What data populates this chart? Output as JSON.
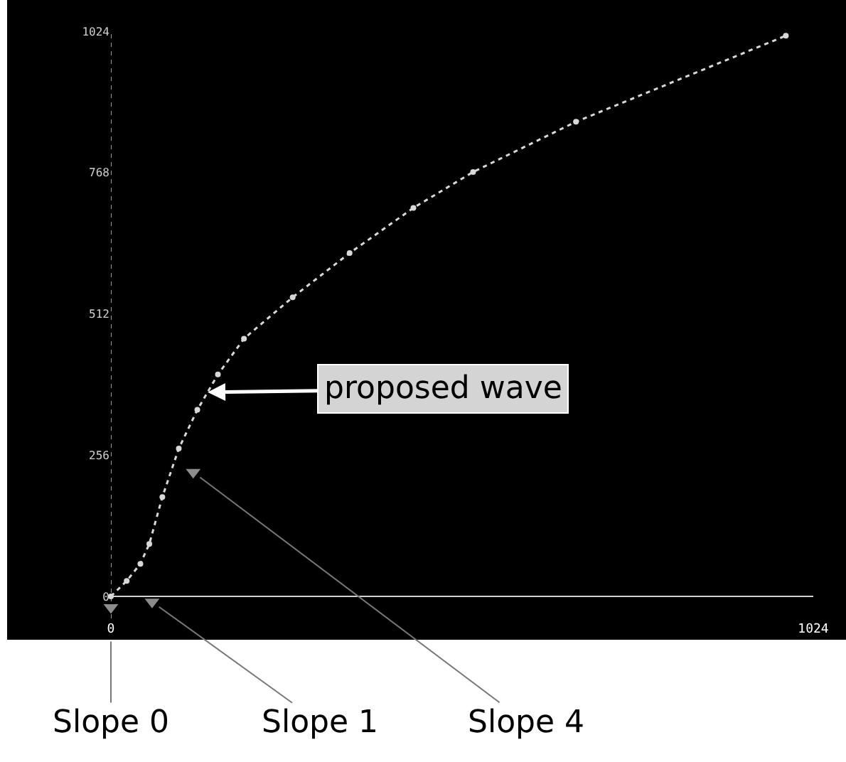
{
  "chart_data": {
    "type": "line",
    "xlim": [
      0,
      1024
    ],
    "ylim": [
      -40,
      1024
    ],
    "xticks": [
      0,
      1024
    ],
    "yticks": [
      0,
      256,
      512,
      768,
      1024
    ],
    "grid": false,
    "series": [
      {
        "color": "#d8d8d8",
        "line_style": "dotted",
        "marker": "circle",
        "x": [
          0,
          23,
          43,
          56,
          75,
          99,
          126,
          156,
          194,
          265,
          348,
          441,
          528,
          678,
          984
        ],
        "values": [
          0,
          28,
          59,
          95,
          180,
          268,
          338,
          402,
          467,
          542,
          622,
          704,
          769,
          860,
          1016
        ]
      },
      {
        "type": "scatter",
        "color": "#8c8c8c",
        "marker": "triangle",
        "x": [
          0,
          60,
          120
        ],
        "values": [
          -20,
          -10,
          225
        ]
      }
    ],
    "ref_lines": [
      {
        "axis": "x",
        "value": 0,
        "color": "#9a9a9a",
        "line_style": "dotted"
      }
    ],
    "annotations": [
      {
        "text": "proposed wave",
        "x": 141,
        "y": 370
      },
      {
        "text": "Slope 0",
        "x": 0,
        "y": -20
      },
      {
        "text": "Slope 1",
        "x": 60,
        "y": -10
      },
      {
        "text": "Slope 4",
        "x": 120,
        "y": 225
      }
    ]
  }
}
